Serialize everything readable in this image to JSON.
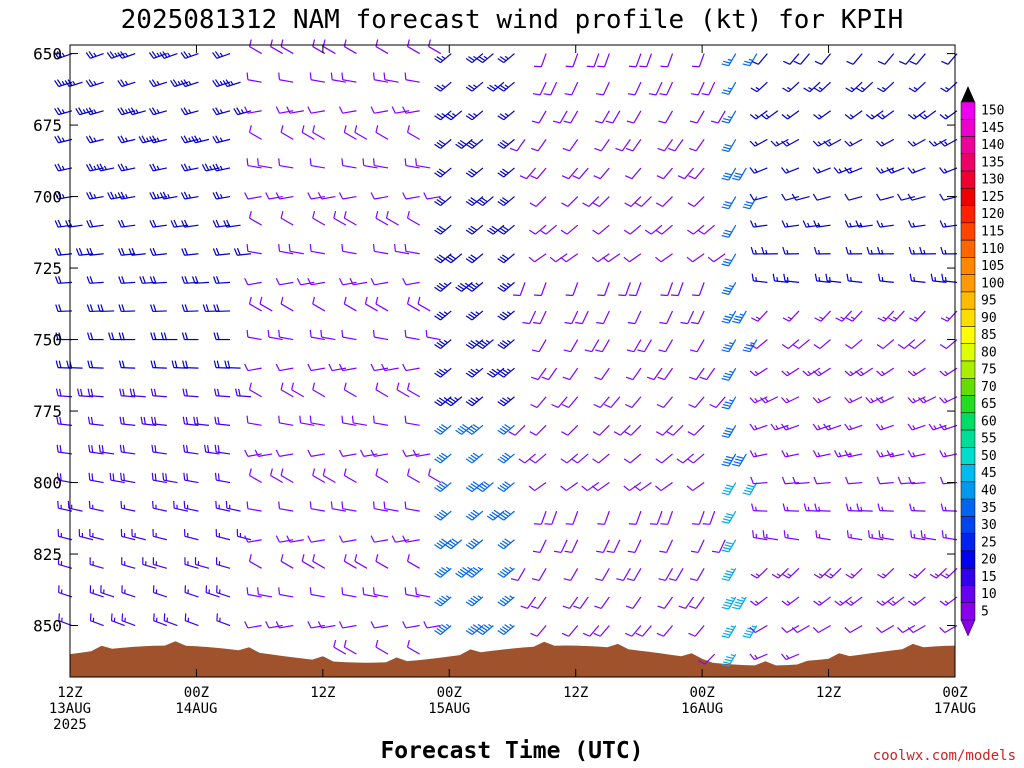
{
  "chart_data": {
    "type": "wind_barbs",
    "title": "2025081312 NAM forecast wind profile (kt) for KPIH",
    "xlabel": "Forecast Time (UTC)",
    "x_ticks": [
      {
        "hour": 0,
        "line1": "12Z",
        "line2": "13AUG",
        "line3": "2025"
      },
      {
        "hour": 12,
        "line1": "00Z",
        "line2": "14AUG",
        "line3": ""
      },
      {
        "hour": 24,
        "line1": "12Z",
        "line2": "",
        "line3": ""
      },
      {
        "hour": 36,
        "line1": "00Z",
        "line2": "15AUG",
        "line3": ""
      },
      {
        "hour": 48,
        "line1": "12Z",
        "line2": "",
        "line3": ""
      },
      {
        "hour": 60,
        "line1": "00Z",
        "line2": "16AUG",
        "line3": ""
      },
      {
        "hour": 72,
        "line1": "12Z",
        "line2": "",
        "line3": ""
      },
      {
        "hour": 84,
        "line1": "00Z",
        "line2": "17AUG",
        "line3": ""
      }
    ],
    "y_ticks": [
      "650",
      "675",
      "700",
      "725",
      "750",
      "775",
      "800",
      "825",
      "850"
    ],
    "ylim": [
      647,
      868
    ],
    "xlim_hours": [
      0,
      84
    ],
    "colorbar": {
      "labels": [
        "150",
        "145",
        "140",
        "135",
        "130",
        "125",
        "120",
        "115",
        "110",
        "105",
        "100",
        "95",
        "90",
        "85",
        "80",
        "75",
        "70",
        "65",
        "60",
        "55",
        "50",
        "45",
        "40",
        "35",
        "30",
        "25",
        "20",
        "15",
        "10",
        "5"
      ],
      "colors": [
        "#ee00ee",
        "#ee00cc",
        "#ee0099",
        "#ee0066",
        "#ee0033",
        "#ee0000",
        "#ff2200",
        "#ff4400",
        "#ff6600",
        "#ff8800",
        "#ff9900",
        "#ffbb00",
        "#ffdd00",
        "#ffff00",
        "#ddff00",
        "#aaee00",
        "#66dd00",
        "#22dd22",
        "#00dd66",
        "#00dd99",
        "#00ddcc",
        "#00bbee",
        "#0099ee",
        "#0066ee",
        "#0044ee",
        "#0022ee",
        "#0000ee",
        "#3300ee",
        "#6600ee",
        "#8800ee"
      ]
    },
    "terrain_color": "#a0522d",
    "barb_colors": {
      "light": "#8000ff",
      "moderate": "#4000ee",
      "strong": "#0000cc",
      "jet": "#0066ee",
      "fast": "#00aaee"
    },
    "credit": "coolwx.com/models"
  }
}
